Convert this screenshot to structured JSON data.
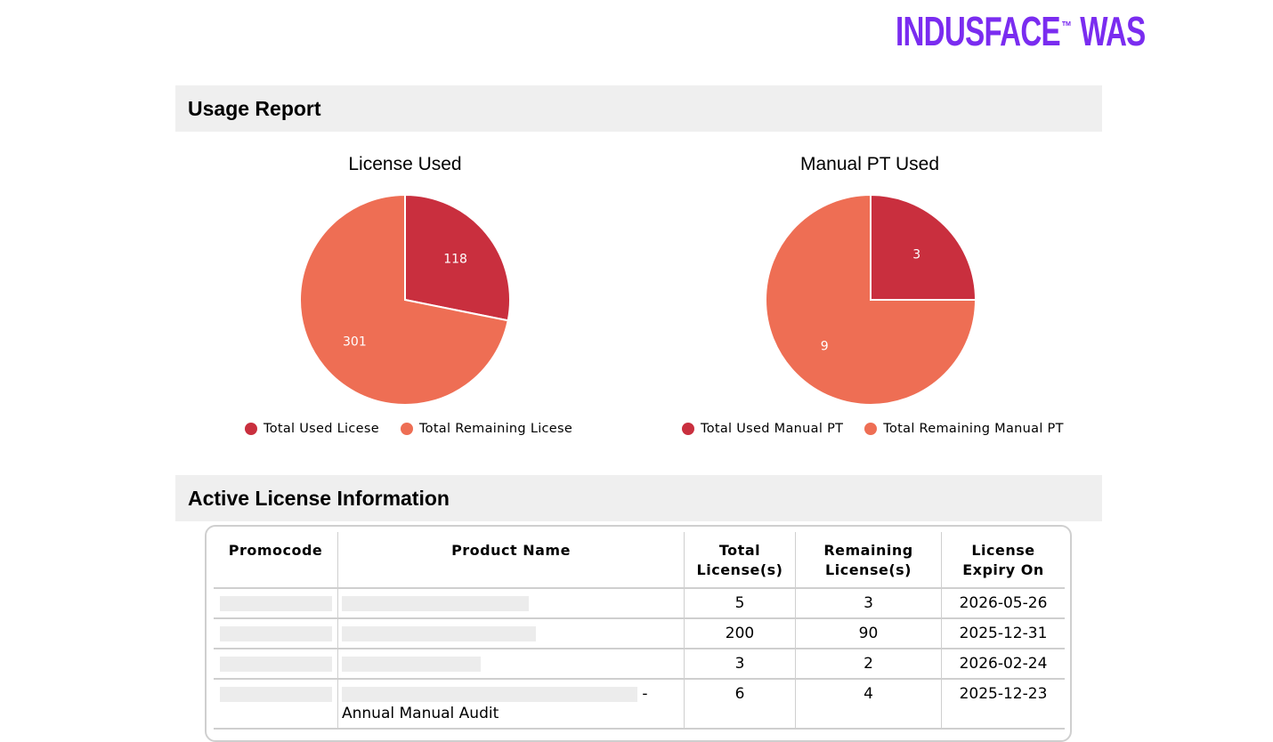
{
  "logo": {
    "name": "INDUSFACE",
    "tm": "™",
    "product": "WAS"
  },
  "sections": {
    "usage_report": "Usage Report",
    "active_license": "Active License Information"
  },
  "colors": {
    "used": "#c92f3e",
    "remaining": "#ee6e54",
    "brand": "#7a2cf0"
  },
  "chart_data": [
    {
      "type": "pie",
      "title": "License Used",
      "categories": [
        "Total Used Licese",
        "Total Remaining Licese"
      ],
      "values": [
        118,
        301
      ]
    },
    {
      "type": "pie",
      "title": "Manual PT Used",
      "categories": [
        "Total Used Manual PT",
        "Total Remaining Manual PT"
      ],
      "values": [
        3,
        9
      ]
    }
  ],
  "table": {
    "headers": [
      "Promocode",
      "Product Name",
      "Total License(s)",
      "Remaining License(s)",
      "License Expiry On"
    ],
    "rows": [
      {
        "total": "5",
        "remaining": "3",
        "expiry": "2026-05-26",
        "product_suffix": ""
      },
      {
        "total": "200",
        "remaining": "90",
        "expiry": "2025-12-31",
        "product_suffix": ""
      },
      {
        "total": "3",
        "remaining": "2",
        "expiry": "2026-02-24",
        "product_suffix": ""
      },
      {
        "total": "6",
        "remaining": "4",
        "expiry": "2025-12-23",
        "product_suffix": "- Annual Manual Audit"
      }
    ]
  }
}
